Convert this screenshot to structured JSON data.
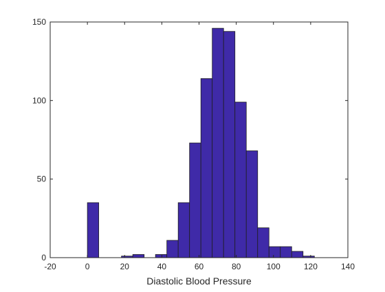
{
  "chart_data": {
    "type": "bar",
    "title": "",
    "xlabel": "Diastolic Blood Pressure",
    "ylabel": "",
    "xlim": [
      -20,
      140
    ],
    "ylim": [
      0,
      150
    ],
    "x_ticks": [
      -20,
      0,
      20,
      40,
      60,
      80,
      100,
      120,
      140
    ],
    "y_ticks": [
      0,
      50,
      100,
      150
    ],
    "grid": false,
    "legend": "none",
    "bar_color": "#3f2aa8",
    "bar_edge_color": "#1f1f1f",
    "bins": [
      {
        "start": 0,
        "end": 6.1,
        "count": 35
      },
      {
        "start": 6.1,
        "end": 12.2,
        "count": 0
      },
      {
        "start": 12.2,
        "end": 18.3,
        "count": 0
      },
      {
        "start": 18.3,
        "end": 24.4,
        "count": 1
      },
      {
        "start": 24.4,
        "end": 30.5,
        "count": 2
      },
      {
        "start": 30.5,
        "end": 36.6,
        "count": 0
      },
      {
        "start": 36.6,
        "end": 42.7,
        "count": 2
      },
      {
        "start": 42.7,
        "end": 48.8,
        "count": 11
      },
      {
        "start": 48.8,
        "end": 54.9,
        "count": 35
      },
      {
        "start": 54.9,
        "end": 61.0,
        "count": 73
      },
      {
        "start": 61.0,
        "end": 67.1,
        "count": 114
      },
      {
        "start": 67.1,
        "end": 73.2,
        "count": 146
      },
      {
        "start": 73.2,
        "end": 79.3,
        "count": 144
      },
      {
        "start": 79.3,
        "end": 85.4,
        "count": 99
      },
      {
        "start": 85.4,
        "end": 91.5,
        "count": 68
      },
      {
        "start": 91.5,
        "end": 97.6,
        "count": 19
      },
      {
        "start": 97.6,
        "end": 103.7,
        "count": 7
      },
      {
        "start": 103.7,
        "end": 109.8,
        "count": 7
      },
      {
        "start": 109.8,
        "end": 115.9,
        "count": 4
      },
      {
        "start": 115.9,
        "end": 122.0,
        "count": 1
      }
    ]
  }
}
